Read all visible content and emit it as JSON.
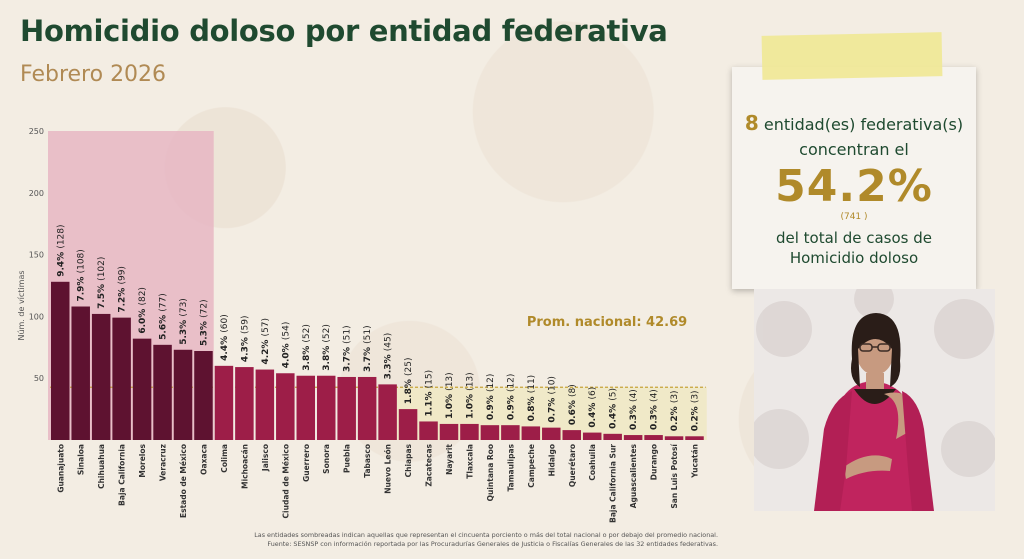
{
  "header": {
    "title": "Homicidio doloso por entidad federativa",
    "subtitle": "Febrero 2026"
  },
  "chart_data": {
    "type": "bar",
    "ylabel": "Núm. de víctimas",
    "ylim": [
      0,
      250
    ],
    "yticks": [
      "250",
      "200",
      "150",
      "100",
      "50"
    ],
    "categories": [
      "Guanajuato",
      "Sinaloa",
      "Chihuahua",
      "Baja California",
      "Morelos",
      "Veracruz",
      "Estado de México",
      "Oaxaca",
      "Colima",
      "Michoacán",
      "Jalisco",
      "Ciudad de México",
      "Guerrero",
      "Sonora",
      "Puebla",
      "Tabasco",
      "Nuevo León",
      "Chiapas",
      "Zacatecas",
      "Nayarit",
      "Tlaxcala",
      "Quintana Roo",
      "Tamaulipas",
      "Campeche",
      "Hidalgo",
      "Querétaro",
      "Coahuila",
      "Baja California Sur",
      "Aguascalientes",
      "Durango",
      "San Luis Potosí",
      "Yucatán"
    ],
    "values": [
      128,
      108,
      102,
      99,
      82,
      77,
      73,
      72,
      60,
      59,
      57,
      54,
      52,
      52,
      51,
      51,
      45,
      25,
      15,
      13,
      13,
      12,
      12,
      11,
      10,
      8,
      6,
      5,
      4,
      4,
      3,
      3
    ],
    "percent_labels": [
      "9.4%",
      "7.9%",
      "7.5%",
      "7.2%",
      "6.0%",
      "5.6%",
      "5.3%",
      "5.3%",
      "4.4%",
      "4.3%",
      "4.2%",
      "4.0%",
      "3.8%",
      "3.8%",
      "3.7%",
      "3.7%",
      "3.3%",
      "1.8%",
      "1.1%",
      "1.0%",
      "1.0%",
      "0.9%",
      "0.9%",
      "0.8%",
      "0.7%",
      "0.6%",
      "0.4%",
      "0.4%",
      "0.3%",
      "0.3%",
      "0.2%",
      "0.2%"
    ],
    "count_labels": [
      "(128)",
      "(108)",
      "(102)",
      "(99)",
      "(82)",
      "(77)",
      "(73)",
      "(72)",
      "(60)",
      "(59)",
      "(57)",
      "(54)",
      "(52)",
      "(52)",
      "(51)",
      "(51)",
      "(45)",
      "(25)",
      "(15)",
      "(13)",
      "(13)",
      "(12)",
      "(12)",
      "(11)",
      "(10)",
      "(8)",
      "(6)",
      "(5)",
      "(4)",
      "(4)",
      "(3)",
      "(3)"
    ],
    "shaded_top_count": 8,
    "shaded_below_average_from": 17,
    "average": 42.69,
    "average_label": "Prom. nacional: 42.69",
    "colors": {
      "top_bars": "#5e1230",
      "other_bars": "#9d1e48",
      "top_shade": "#e6b6c3",
      "low_shade": "#efe8c4",
      "average_line": "#c6a33b",
      "average_text": "#b08a2a"
    }
  },
  "footnotes": {
    "line1": "Las entidades sombreadas indican aquellas que representan el cincuenta porciento o más del total nacional o por debajo del promedio nacional.",
    "line2": "Fuente: SESNSP con información reportada por las Procuradurías Generales de Justicia o Fiscalías Generales de las 32 entidades federativas."
  },
  "summary_card": {
    "count": "8",
    "line1_text": "entidad(es) federativa(s)",
    "line2": "concentran el",
    "percent": "54.2%",
    "cases": "(741 )",
    "line3": "del total de casos de",
    "line4": "Homicidio doloso"
  },
  "interpreter_video": {
    "colors": {
      "shirt": "#c0245e",
      "hair": "#2a1d18",
      "skin": "#c79a80",
      "background": "#ece8e6"
    }
  }
}
